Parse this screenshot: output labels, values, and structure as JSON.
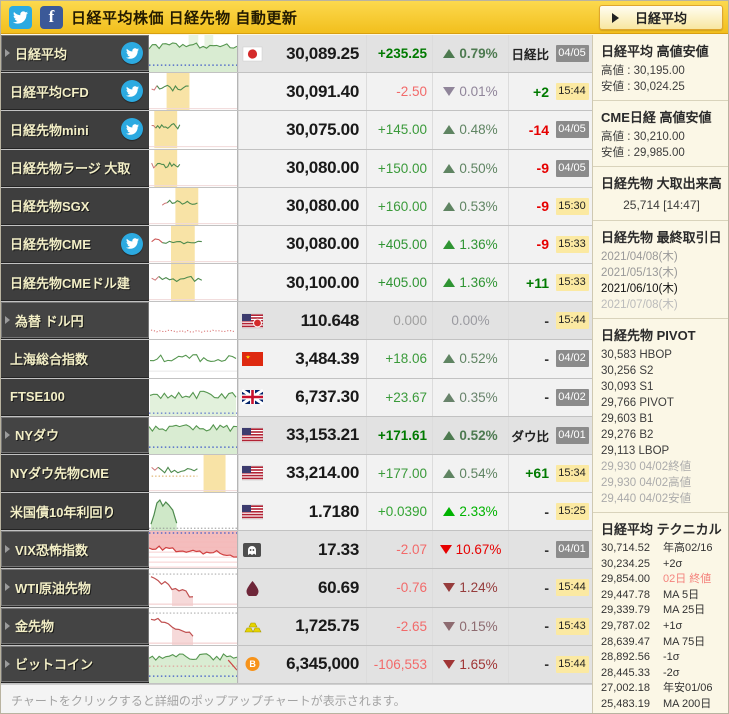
{
  "titlebar": {
    "title": "日経平均株価 日経先物 自動更新",
    "icons": [
      "twitter-icon",
      "facebook-icon"
    ],
    "bg_color": "#f5c83c"
  },
  "sidebar_button": {
    "label": "日経平均"
  },
  "footer": {
    "note": "チャートをクリックすると詳細のポップアップチャートが表示されます。"
  },
  "colors": {
    "up_strong": "#00b300",
    "up": "#3a9a3a",
    "up_muted": "#5f8462",
    "down_strong": "#e60000",
    "down": "#f26a6a",
    "down_muted": "#8d6b70",
    "neutral": "#a0a0a0",
    "badge_date_bg": "#8b8b8b",
    "badge_time_bg": "#fbe9a2"
  },
  "table": {
    "rows": [
      {
        "label": "日経平均",
        "arrow": true,
        "twitter": true,
        "head": true,
        "bold": true,
        "flag": "jp",
        "price": "30,089.25",
        "change": "+235.25",
        "change_color": "#007a00",
        "pct_dir": "up",
        "pct": "0.79%",
        "pct_color": "#4d7a50",
        "comp": "日経比",
        "comp_color": "#222222",
        "comp_label": true,
        "badge": "04/05",
        "badge_type": "date",
        "spark": {
          "type": "area-green",
          "bands": [
            [
              0.45,
              0.56
            ],
            [
              0.63,
              0.73
            ]
          ]
        }
      },
      {
        "label": "日経平均CFD",
        "twitter": true,
        "flag": "none",
        "price": "30,091.40",
        "change": "-2.50",
        "change_color": "#f26a6a",
        "pct_dir": "down",
        "pct": "0.01%",
        "pct_color": "#90859a",
        "comp": "+2",
        "comp_color": "#007a00",
        "badge": "15:44",
        "badge_type": "time",
        "spark": {
          "type": "wiggle-left",
          "end": 0.45,
          "band": [
            0.2,
            0.46
          ]
        }
      },
      {
        "label": "日経先物mini",
        "twitter": true,
        "flag": "none",
        "price": "30,075.00",
        "change": "+145.00",
        "change_color": "#3a9a3a",
        "pct_dir": "up",
        "pct": "0.48%",
        "pct_color": "#5f8462",
        "comp": "-14",
        "comp_color": "#e60000",
        "badge": "04/05",
        "badge_type": "date",
        "spark": {
          "type": "wiggle-left",
          "end": 0.35,
          "band": [
            0.06,
            0.32
          ]
        }
      },
      {
        "label": "日経先物ラージ 大取",
        "flag": "none",
        "price": "30,080.00",
        "change": "+150.00",
        "change_color": "#3a9a3a",
        "pct_dir": "up",
        "pct": "0.50%",
        "pct_color": "#5f8462",
        "comp": "-9",
        "comp_color": "#e60000",
        "badge": "04/05",
        "badge_type": "date",
        "spark": {
          "type": "wiggle-left",
          "end": 0.35,
          "band": [
            0.06,
            0.32
          ]
        }
      },
      {
        "label": "日経先物SGX",
        "flag": "none",
        "price": "30,080.00",
        "change": "+160.00",
        "change_color": "#3a9a3a",
        "pct_dir": "up",
        "pct": "0.53%",
        "pct_color": "#5f8462",
        "comp": "-9",
        "comp_color": "#e60000",
        "badge": "15:30",
        "badge_type": "time",
        "spark": {
          "type": "wiggle-left",
          "start": 0.15,
          "end": 0.55,
          "band": [
            0.3,
            0.56
          ]
        }
      },
      {
        "label": "日経先物CME",
        "twitter": true,
        "flag": "none",
        "price": "30,080.00",
        "change": "+405.00",
        "change_color": "#2f9433",
        "pct_dir": "up",
        "pct": "1.36%",
        "pct_color": "#2f9433",
        "comp": "-9",
        "comp_color": "#e60000",
        "badge": "15:33",
        "badge_type": "time",
        "spark": {
          "type": "wiggle-left",
          "end": 0.6,
          "band": [
            0.25,
            0.52
          ],
          "redstart": true
        }
      },
      {
        "label": "日経先物CMEドル建",
        "flag": "none",
        "price": "30,100.00",
        "change": "+405.00",
        "change_color": "#2f9433",
        "pct_dir": "up",
        "pct": "1.36%",
        "pct_color": "#2f9433",
        "comp": "+11",
        "comp_color": "#007a00",
        "badge": "15:33",
        "badge_type": "time",
        "spark": {
          "type": "wiggle-left",
          "end": 0.6,
          "band": [
            0.25,
            0.52
          ]
        }
      },
      {
        "label": "為替 ドル円",
        "arrow": true,
        "head": true,
        "flag": "usjp",
        "price": "110.648",
        "change": "0.000",
        "change_color": "#a0a0a0",
        "pct_dir": "none",
        "pct": "0.00%",
        "pct_color": "#9a9aa0",
        "comp": "-",
        "comp_color": "#333333",
        "badge": "15:44",
        "badge_type": "time",
        "spark": {
          "type": "flat-red"
        }
      },
      {
        "label": "上海総合指数",
        "flag": "cn",
        "price": "3,484.39",
        "change": "+18.06",
        "change_color": "#3a9a3a",
        "pct_dir": "up",
        "pct": "0.52%",
        "pct_color": "#5f8462",
        "comp": "-",
        "comp_color": "#333333",
        "badge": "04/02",
        "badge_type": "date",
        "spark": {
          "type": "line-green"
        }
      },
      {
        "label": "FTSE100",
        "flag": "uk",
        "price": "6,737.30",
        "change": "+23.67",
        "change_color": "#3a9a3a",
        "pct_dir": "up",
        "pct": "0.35%",
        "pct_color": "#68836b",
        "comp": "-",
        "comp_color": "#333333",
        "badge": "04/02",
        "badge_type": "date",
        "spark": {
          "type": "line-green-area"
        }
      },
      {
        "label": "NYダウ",
        "arrow": true,
        "head": true,
        "bold": true,
        "flag": "us",
        "price": "33,153.21",
        "change": "+171.61",
        "change_color": "#007a00",
        "pct_dir": "up",
        "pct": "0.52%",
        "pct_color": "#4d7a50",
        "comp": "ダウ比",
        "comp_color": "#222222",
        "comp_label": true,
        "badge": "04/01",
        "badge_type": "date",
        "spark": {
          "type": "area-green"
        }
      },
      {
        "label": "NYダウ先物CME",
        "flag": "us",
        "price": "33,214.00",
        "change": "+177.00",
        "change_color": "#3a9a3a",
        "pct_dir": "up",
        "pct": "0.54%",
        "pct_color": "#5f8462",
        "comp": "+61",
        "comp_color": "#007a00",
        "badge": "15:34",
        "badge_type": "time",
        "spark": {
          "type": "wiggle-left",
          "end": 0.55,
          "band": [
            0.62,
            0.87
          ],
          "baseline": true
        }
      },
      {
        "label": "米国債10年利回り",
        "flag": "us",
        "price": "1.7180",
        "change": "+0.0390",
        "change_color": "#33a433",
        "pct_dir": "up",
        "pct": "2.33%",
        "pct_color": "#00b300",
        "comp": "-",
        "comp_color": "#333333",
        "badge": "15:25",
        "badge_type": "time",
        "spark": {
          "type": "spike-green"
        }
      },
      {
        "label": "VIX恐怖指数",
        "arrow": true,
        "head": true,
        "flag": "vix",
        "price": "17.33",
        "change": "-2.07",
        "change_color": "#f26a6a",
        "pct_dir": "down",
        "pct": "10.67%",
        "pct_color": "#e60000",
        "comp": "-",
        "comp_color": "#333333",
        "badge": "04/01",
        "badge_type": "date",
        "spark": {
          "type": "area-red-top"
        }
      },
      {
        "label": "WTI原油先物",
        "arrow": true,
        "head": true,
        "flag": "oil",
        "price": "60.69",
        "change": "-0.76",
        "change_color": "#f26a6a",
        "pct_dir": "down",
        "pct": "1.24%",
        "pct_color": "#963c3c",
        "comp": "-",
        "comp_color": "#333333",
        "badge": "15:44",
        "badge_type": "time",
        "spark": {
          "type": "down-red"
        }
      },
      {
        "label": "金先物",
        "arrow": true,
        "head": true,
        "flag": "gold",
        "price": "1,725.75",
        "change": "-2.65",
        "change_color": "#f26a6a",
        "pct_dir": "down",
        "pct": "0.15%",
        "pct_color": "#8d6b70",
        "comp": "-",
        "comp_color": "#333333",
        "badge": "15:43",
        "badge_type": "time",
        "spark": {
          "type": "down-red"
        }
      },
      {
        "label": "ビットコイン",
        "arrow": true,
        "head": true,
        "flag": "btc",
        "price": "6,345,000",
        "change": "-106,553",
        "change_color": "#f26a6a",
        "pct_dir": "down",
        "pct": "1.65%",
        "pct_color": "#a03535",
        "comp": "-",
        "comp_color": "#333333",
        "badge": "15:44",
        "badge_type": "time",
        "spark": {
          "type": "area-mixed"
        }
      }
    ]
  },
  "sidebar": {
    "sections": [
      {
        "title": "日経平均 高値安値",
        "rows": [
          {
            "text": "高値 : 30,195.00"
          },
          {
            "text": "安値 : 30,024.25"
          }
        ]
      },
      {
        "title": "CME日経 高値安値",
        "rows": [
          {
            "text": "高値 : 30,210.00"
          },
          {
            "text": "安値 : 29,985.00"
          }
        ]
      },
      {
        "title": "日経先物 大取出来高",
        "center": true,
        "rows": [
          {
            "text": "25,714 [14:47]"
          }
        ]
      },
      {
        "title": "日経先物 最終取引日",
        "rows": [
          {
            "text": "2021/04/08(木)",
            "color": "#999999"
          },
          {
            "text": "2021/05/13(木)",
            "color": "#999999"
          },
          {
            "text": "2021/06/10(木)",
            "color": "#111111"
          },
          {
            "text": "2021/07/08(木)",
            "color": "#bbbbbb"
          }
        ]
      },
      {
        "title": "日経先物 PIVOT",
        "rows": [
          {
            "text": "30,583 HBOP"
          },
          {
            "text": "30,256 S2"
          },
          {
            "text": "30,093 S1"
          },
          {
            "text": "29,766 PIVOT"
          },
          {
            "text": "29,603 B1"
          },
          {
            "text": "29,276 B2"
          },
          {
            "text": "29,113 LBOP"
          },
          {
            "text": "29,930 04/02終値",
            "color": "#ababab"
          },
          {
            "text": "29,930 04/02高値",
            "color": "#ababab"
          },
          {
            "text": "29,440 04/02安値",
            "color": "#ababab"
          }
        ]
      },
      {
        "title": "日経平均 テクニカル",
        "pairs": [
          {
            "value": "30,714.52",
            "label": "年高02/16"
          },
          {
            "value": "30,234.25",
            "label": "+2σ"
          },
          {
            "value": "29,854.00",
            "label": "02日 終値",
            "label_color": "#f4837d"
          },
          {
            "value": "29,447.78",
            "label": "MA 5日"
          },
          {
            "value": "29,339.79",
            "label": "MA 25日"
          },
          {
            "value": "29,787.02",
            "label": "+1σ"
          },
          {
            "value": "28,639.47",
            "label": "MA 75日"
          },
          {
            "value": "28,892.56",
            "label": "-1σ"
          },
          {
            "value": "28,445.33",
            "label": "-2σ"
          },
          {
            "value": "27,002.18",
            "label": "年安01/06"
          },
          {
            "value": "25,483.19",
            "label": "MA 200日"
          }
        ]
      }
    ]
  }
}
